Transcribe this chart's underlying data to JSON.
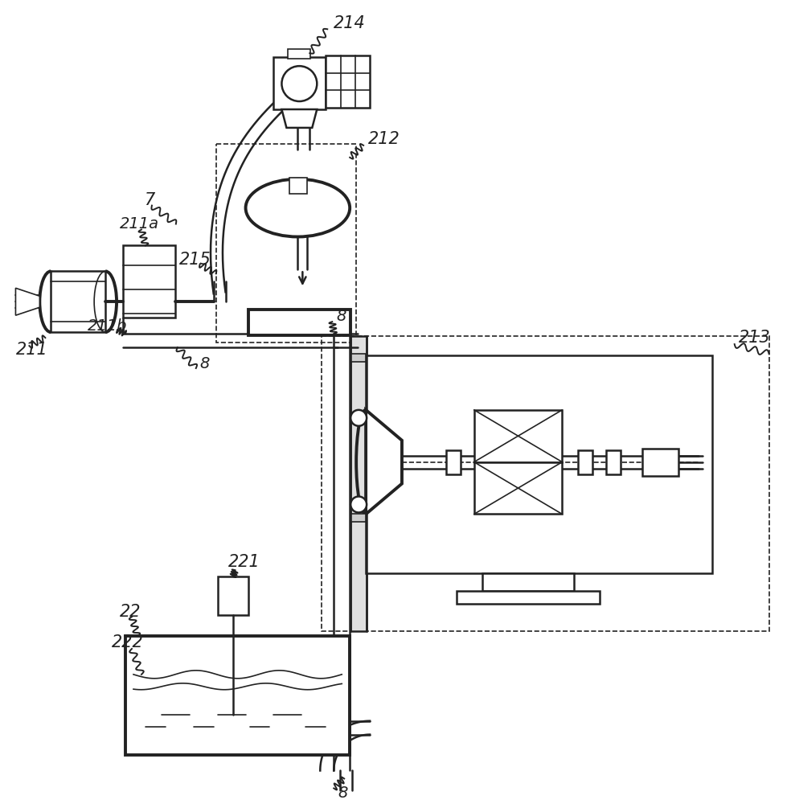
{
  "bg_color": "#ffffff",
  "line_color": "#222222",
  "lw": 1.8,
  "lw_thick": 2.8,
  "lw_thin": 1.2,
  "figsize": [
    9.84,
    10.0
  ],
  "dpi": 100
}
